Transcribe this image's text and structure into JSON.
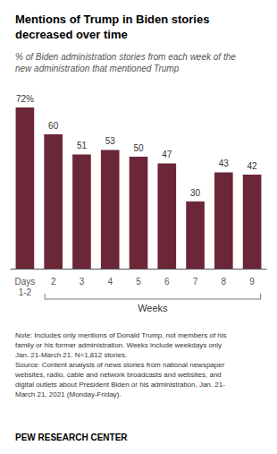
{
  "chart_data": {
    "type": "bar",
    "title": "Mentions of Trump in Biden stories\ndecreased over time",
    "subtitle": "% of Biden administration stories from each week of the\nnew administration that mentioned Trump",
    "xlabel": "Weeks",
    "note": "Note: Includes only mentions of Donald Trump, not members of his\nfamily or his former administration. Weeks include weekdays only\nJan. 21-March 21. N=1,812 stories.\nSource: Content analysis of news stories from national newspaper\nwebsites, radio, cable and network broadcasts and websites, and\ndigital outlets about President Biden or his administration, Jan. 21-\nMarch 21, 2021 (Monday-Friday).",
    "footer": "PEW RESEARCH CENTER",
    "categories": [
      "Days\n1-2",
      "2",
      "3",
      "4",
      "5",
      "6",
      "7",
      "8",
      "9"
    ],
    "values": [
      72,
      60,
      51,
      53,
      50,
      47,
      30,
      43,
      42
    ],
    "value_labels": [
      "72%",
      "60",
      "51",
      "53",
      "50",
      "47",
      "30",
      "43",
      "42"
    ],
    "color": "#6b2737",
    "ylim": [
      0,
      80
    ],
    "grid": false,
    "data_labels": true,
    "tick_labels": "x"
  }
}
